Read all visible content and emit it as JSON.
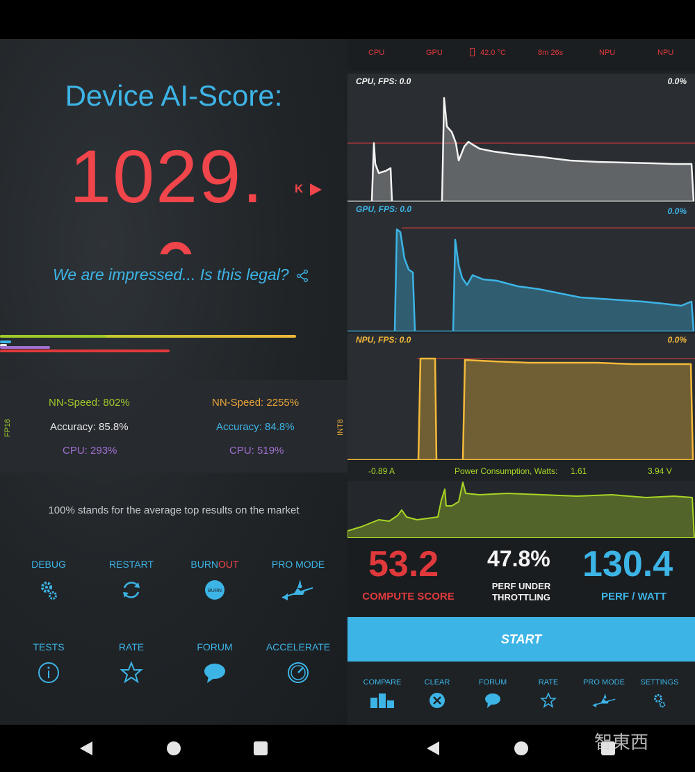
{
  "left": {
    "title": "Device AI-Score:",
    "score": "1029.",
    "k_badge": "K",
    "tagline": "We are impressed... Is this legal?",
    "fp16": {
      "label": "FP16",
      "nn_speed": "NN-Speed:  802%",
      "accuracy": "Accuracy:  85.8%",
      "cpu": "CPU:  293%"
    },
    "int8": {
      "label": "INT8",
      "nn_speed": "NN-Speed:  2255%",
      "accuracy": "Accuracy:  84.8%",
      "cpu": "CPU:  519%"
    },
    "note": "100% stands for the average top results on the market",
    "buttons": {
      "debug": "DEBUG",
      "restart": "RESTART",
      "burn": "BURN",
      "out": "OUT",
      "pro_mode": "PRO MODE",
      "tests": "TESTS",
      "rate": "RATE",
      "forum": "FORUM",
      "accelerate": "ACCELERATE"
    },
    "burn_icon_text": "BURN"
  },
  "right": {
    "topbar": {
      "cpu": "CPU",
      "gpu": "GPU",
      "temp": "42.0 °C",
      "time": "8m 26s",
      "npu1": "NPU",
      "npu2": "NPU"
    },
    "cpu_chart": {
      "label": "CPU, FPS:  0.0",
      "pct": "0.0%"
    },
    "gpu_chart": {
      "label": "GPU, FPS:  0.0",
      "pct": "0.0%"
    },
    "npu_chart": {
      "label": "NPU, FPS:  0.0",
      "pct": "0.0%"
    },
    "power": {
      "current": "-0.89 A",
      "label": "Power Consumption, Watts:",
      "watts": "1.61",
      "voltage": "3.94 V"
    },
    "compute_score": {
      "value": "53.2",
      "label": "COMPUTE SCORE"
    },
    "throttling": {
      "value": "47.8%",
      "label1": "PERF UNDER",
      "label2": "THROTTLING"
    },
    "perf_watt": {
      "value": "130.4",
      "label": "PERF / WATT"
    },
    "start_label": "START",
    "nav": {
      "compare": "COMPARE",
      "clear": "CLEAR",
      "forum": "FORUM",
      "rate": "RATE",
      "pro_mode": "PRO MODE",
      "settings": "SETTINGS"
    }
  },
  "colors": {
    "accent_blue": "#3db4e6",
    "score_red": "#f0454a",
    "nn_green": "#9fc82b",
    "orange": "#e8a43a",
    "purple": "#a16fd0",
    "npu_yellow": "#f4b93a",
    "power_green": "#a8d526"
  },
  "watermark": "智東西"
}
